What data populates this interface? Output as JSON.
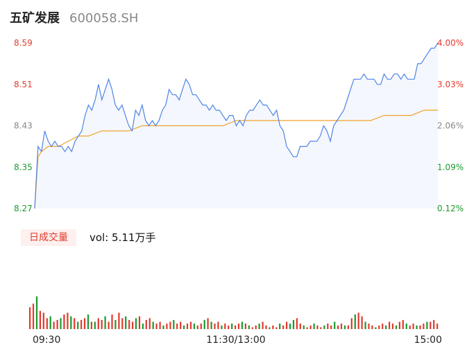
{
  "stock": {
    "name": "五矿发展",
    "code": "600058.SH"
  },
  "colors": {
    "up": "#e23a2e",
    "down": "#1a9a2e",
    "price_line": "#4f84e6",
    "avg_line": "#f0a12a",
    "neutral": "#888888"
  },
  "volume": {
    "tag": "日成交量",
    "text": "vol: 5.11万手"
  },
  "chart_data": {
    "type": "line",
    "y_left_ticks": [
      "8.59",
      "8.51",
      "8.43",
      "8.35",
      "8.27"
    ],
    "y_right_ticks": [
      "4.00%",
      "3.03%",
      "2.06%",
      "1.09%",
      "0.12%"
    ],
    "x_ticks": [
      "09:30",
      "11:30/13:00",
      "15:00"
    ],
    "ylim": [
      8.27,
      8.59
    ],
    "grid": false,
    "series": [
      {
        "key": "price",
        "x": [
          0,
          2,
          4,
          6,
          8,
          10,
          12,
          14,
          16,
          18,
          20,
          22,
          24,
          26,
          28,
          30,
          32,
          34,
          36,
          38,
          40,
          42,
          44,
          46,
          48,
          50,
          52,
          54,
          56,
          58,
          60,
          62,
          64,
          66,
          68,
          70,
          72,
          74,
          76,
          78,
          80,
          82,
          84,
          86,
          88,
          90,
          92,
          94,
          96,
          98,
          100,
          102,
          104,
          106,
          108,
          110,
          112,
          114,
          116,
          118,
          120,
          122,
          124,
          126,
          128,
          130,
          132,
          134,
          136,
          138,
          140,
          142,
          144,
          146,
          148,
          150,
          152,
          154,
          156,
          158,
          160,
          162,
          164,
          166,
          168,
          170,
          172,
          174,
          176,
          178,
          180,
          182,
          184,
          186,
          188,
          190,
          192,
          194,
          196,
          198,
          200,
          202,
          204,
          206,
          208,
          210,
          212,
          214,
          216,
          218,
          220,
          222,
          224,
          226,
          228,
          230,
          232,
          234,
          236,
          238,
          240
        ],
        "y": [
          8.27,
          8.39,
          8.38,
          8.42,
          8.4,
          8.39,
          8.4,
          8.39,
          8.39,
          8.38,
          8.39,
          8.38,
          8.4,
          8.41,
          8.42,
          8.45,
          8.47,
          8.46,
          8.48,
          8.51,
          8.48,
          8.5,
          8.52,
          8.5,
          8.47,
          8.46,
          8.47,
          8.45,
          8.43,
          8.42,
          8.46,
          8.45,
          8.47,
          8.44,
          8.43,
          8.44,
          8.43,
          8.44,
          8.46,
          8.47,
          8.5,
          8.49,
          8.49,
          8.48,
          8.5,
          8.52,
          8.51,
          8.49,
          8.49,
          8.48,
          8.47,
          8.47,
          8.46,
          8.47,
          8.46,
          8.46,
          8.45,
          8.44,
          8.45,
          8.45,
          8.43,
          8.44,
          8.43,
          8.45,
          8.46,
          8.46,
          8.47,
          8.48,
          8.47,
          8.47,
          8.46,
          8.45,
          8.46,
          8.43,
          8.42,
          8.39,
          8.38,
          8.37,
          8.37,
          8.39,
          8.39,
          8.39,
          8.4,
          8.4,
          8.4,
          8.41,
          8.43,
          8.42,
          8.4,
          8.43,
          8.44,
          8.45,
          8.46,
          8.48,
          8.5,
          8.52,
          8.52,
          8.52,
          8.53,
          8.52,
          8.52,
          8.52,
          8.51,
          8.51,
          8.53,
          8.52,
          8.52,
          8.53,
          8.53,
          8.52,
          8.53,
          8.52,
          8.52,
          8.52,
          8.55,
          8.55,
          8.56,
          8.57,
          8.58,
          8.58,
          8.59
        ]
      },
      {
        "key": "average",
        "x": [
          0,
          2,
          4,
          8,
          14,
          20,
          26,
          32,
          40,
          48,
          56,
          64,
          72,
          80,
          88,
          96,
          104,
          112,
          120,
          128,
          136,
          144,
          152,
          160,
          168,
          176,
          184,
          192,
          200,
          208,
          216,
          224,
          232,
          240
        ],
        "y": [
          8.27,
          8.37,
          8.38,
          8.39,
          8.39,
          8.4,
          8.41,
          8.41,
          8.42,
          8.42,
          8.42,
          8.43,
          8.43,
          8.43,
          8.43,
          8.43,
          8.43,
          8.43,
          8.44,
          8.44,
          8.44,
          8.44,
          8.44,
          8.44,
          8.44,
          8.44,
          8.44,
          8.44,
          8.44,
          8.45,
          8.45,
          8.45,
          8.46,
          8.46
        ]
      }
    ]
  },
  "volume_data": {
    "values": [
      12,
      14,
      18,
      10,
      9,
      6,
      7,
      4,
      5,
      6,
      8,
      9,
      7,
      6,
      4,
      5,
      6,
      8,
      4,
      4,
      6,
      5,
      7,
      4,
      8,
      5,
      9,
      6,
      7,
      5,
      4,
      6,
      7,
      3,
      5,
      6,
      4,
      3,
      4,
      2,
      3,
      4,
      5,
      3,
      4,
      2,
      3,
      4,
      3,
      2,
      3,
      5,
      6,
      4,
      3,
      4,
      2,
      3,
      2,
      3,
      2,
      3,
      4,
      3,
      2,
      1,
      2,
      3,
      4,
      2,
      1,
      2,
      1,
      3,
      2,
      4,
      3,
      5,
      6,
      3,
      2,
      1,
      2,
      3,
      2,
      1,
      2,
      3,
      2,
      4,
      2,
      3,
      2,
      2,
      6,
      8,
      9,
      7,
      4,
      3,
      2,
      1,
      2,
      3,
      2,
      4,
      3,
      2,
      4,
      5,
      3,
      2,
      3,
      2,
      2,
      3,
      4,
      4,
      5,
      3
    ],
    "up": [
      1,
      1,
      0,
      1,
      1,
      1,
      0,
      1,
      1,
      0,
      1,
      1,
      0,
      1,
      0,
      1,
      1,
      0,
      1,
      0,
      1,
      1,
      0,
      1,
      1,
      0,
      1,
      1,
      0,
      1,
      1,
      0,
      1,
      0,
      1,
      1,
      0,
      1,
      1,
      0,
      1,
      1,
      0,
      1,
      1,
      0,
      1,
      1,
      0,
      1,
      1,
      0,
      1,
      0,
      1,
      1,
      0,
      1,
      1,
      0,
      1,
      1,
      0,
      1,
      0,
      1,
      1,
      0,
      1,
      1,
      0,
      1,
      1,
      0,
      1,
      1,
      0,
      0,
      1,
      1,
      0,
      1,
      1,
      0,
      1,
      1,
      0,
      1,
      1,
      0,
      1,
      1,
      0,
      1,
      1,
      0,
      1,
      1,
      0,
      1,
      1,
      0,
      1,
      1,
      0,
      1,
      1,
      0,
      1,
      1,
      0,
      1,
      1,
      0,
      1,
      1,
      0,
      1,
      1,
      1
    ]
  }
}
